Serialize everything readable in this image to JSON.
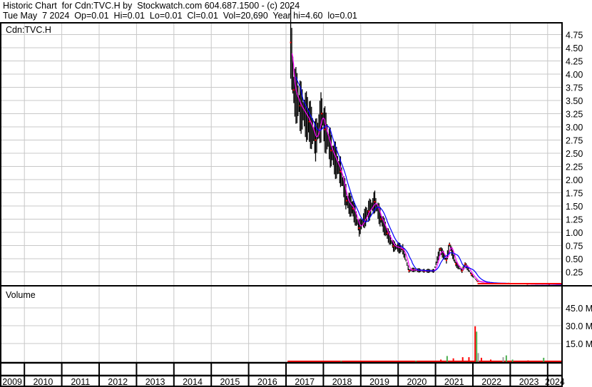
{
  "header": {
    "title": "Historic Chart  for Cdn:TVC.H by  Stockwatch.com 604.687.1500 - (c) 2024",
    "quote": "Tue May  7 2024  Op=0.01  Hi=0.01  Lo=0.01  Cl=0.01  Vol=20,690  Year hi=4.60  lo=0.01"
  },
  "chart_data": [
    {
      "type": "line",
      "title": "Cdn:TVC.H",
      "ylim": [
        0,
        4.9
      ],
      "yticks": [
        "0.25",
        "0.50",
        "0.75",
        "1.00",
        "1.25",
        "1.50",
        "1.75",
        "2.00",
        "2.25",
        "2.50",
        "2.75",
        "3.00",
        "3.25",
        "3.50",
        "3.75",
        "4.00",
        "4.25",
        "4.50",
        "4.75"
      ],
      "grid": true,
      "colors": {
        "price": "#000000",
        "up": "#ff0000",
        "ma_short": "#ff00ff",
        "ma_long": "#0000ff"
      },
      "series": [
        {
          "points": [
            [
              "2017-02",
              4.6
            ],
            [
              "2017-03",
              3.7
            ],
            [
              "2017-05",
              3.4
            ],
            [
              "2017-08",
              3.1
            ],
            [
              "2017-10",
              2.75
            ],
            [
              "2017-12",
              3.25
            ],
            [
              "2018-01",
              2.95
            ],
            [
              "2018-03",
              2.55
            ],
            [
              "2018-06",
              2.15
            ],
            [
              "2018-08",
              1.6
            ],
            [
              "2018-10",
              1.45
            ],
            [
              "2018-12",
              1.08
            ],
            [
              "2019-03",
              1.4
            ],
            [
              "2019-05",
              1.58
            ],
            [
              "2019-07",
              1.25
            ],
            [
              "2019-09",
              0.98
            ],
            [
              "2019-11",
              0.74
            ],
            [
              "2020-02",
              0.68
            ],
            [
              "2020-04",
              0.27
            ],
            [
              "2020-05",
              0.29
            ],
            [
              "2020-09",
              0.27
            ],
            [
              "2020-12",
              0.27
            ],
            [
              "2021-02",
              0.68
            ],
            [
              "2021-04",
              0.47
            ],
            [
              "2021-05",
              0.77
            ],
            [
              "2021-07",
              0.4
            ],
            [
              "2021-09",
              0.27
            ],
            [
              "2021-10",
              0.4
            ],
            [
              "2021-12",
              0.2
            ],
            [
              "2022-02",
              0.07
            ],
            [
              "2022-06",
              0.04
            ],
            [
              "2022-12",
              0.03
            ],
            [
              "2023-06",
              0.02
            ],
            [
              "2024-01",
              0.015
            ],
            [
              "2024-05",
              0.01
            ]
          ]
        }
      ]
    },
    {
      "type": "bar",
      "title": "Volume",
      "ylim": [
        0,
        60
      ],
      "yticks": [
        "15.0 M",
        "30.0 M",
        "45.0 M"
      ],
      "series": [
        {
          "points": [
            [
              "2017-06",
              0.4,
              "red"
            ],
            [
              "2018-06",
              0.4,
              "green"
            ],
            [
              "2019-06",
              0.4,
              "red"
            ],
            [
              "2020-06",
              0.5,
              "green"
            ],
            [
              "2021-02",
              1.5,
              "red"
            ],
            [
              "2021-04",
              4.5,
              "green"
            ],
            [
              "2021-06",
              2.5,
              "red"
            ],
            [
              "2021-09",
              3.5,
              "red"
            ],
            [
              "2021-11",
              3.5,
              "red"
            ],
            [
              "2022-01",
              29.5,
              "red"
            ],
            [
              "2022-01",
              25.0,
              "green"
            ],
            [
              "2022-02",
              7.0,
              "grey"
            ],
            [
              "2022-03",
              3.0,
              "red"
            ],
            [
              "2022-06",
              1.5,
              "red"
            ],
            [
              "2022-10",
              3.5,
              "grey"
            ],
            [
              "2022-11",
              5.0,
              "green"
            ],
            [
              "2023-01",
              1.5,
              "green"
            ],
            [
              "2023-06",
              0.8,
              "red"
            ],
            [
              "2023-11",
              3.0,
              "green"
            ],
            [
              "2024-02",
              0.6,
              "red"
            ]
          ]
        }
      ]
    }
  ],
  "xaxis": {
    "years": [
      "2009",
      "2010",
      "2011",
      "2012",
      "2013",
      "2014",
      "2015",
      "2016",
      "2017",
      "2018",
      "2019",
      "2020",
      "2021",
      "2022",
      "2023",
      "2024"
    ]
  }
}
